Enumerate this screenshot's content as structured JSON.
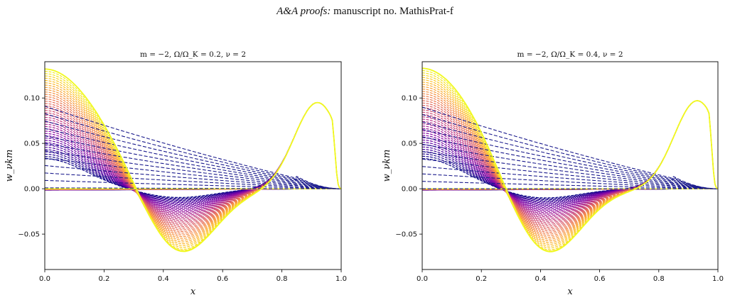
{
  "header": {
    "journal_italic": "A&A proofs:",
    "rest": " manuscript no. MathisPrat-f"
  },
  "chart_data": [
    {
      "type": "line",
      "title": "m = −2,  Ω/Ω_K = 0.2,  ν = 2",
      "xlabel": "x",
      "ylabel": "w_νkm",
      "xlim": [
        0.0,
        1.0
      ],
      "ylim": [
        -0.089,
        0.14
      ],
      "xticks": [
        "0.0",
        "0.2",
        "0.4",
        "0.6",
        "0.8",
        "1.0"
      ],
      "yticks": [
        "−0.05",
        "0.00",
        "0.05",
        "0.10"
      ],
      "colormap": "plasma (dark blue to yellow)",
      "grid": false,
      "profile_family": {
        "peak_at_x0": 0.132,
        "minimum": -0.078,
        "minimum_x": 0.45,
        "secondary_peak": 0.095,
        "secondary_peak_x": 0.92
      },
      "dashed_curves": {
        "start_values": [
          0.091,
          0.086
        ],
        "color": "#1a1a8c"
      }
    },
    {
      "type": "line",
      "title": "m = −2,  Ω/Ω_K = 0.4,  ν = 2",
      "xlabel": "x",
      "ylabel": "w_νkm",
      "xlim": [
        0.0,
        1.0
      ],
      "ylim": [
        -0.089,
        0.14
      ],
      "xticks": [
        "0.0",
        "0.2",
        "0.4",
        "0.6",
        "0.8",
        "1.0"
      ],
      "yticks": [
        "−0.05",
        "0.00",
        "0.05",
        "0.10"
      ],
      "colormap": "plasma (dark blue to yellow)",
      "grid": false,
      "profile_family": {
        "peak_at_x0": 0.133,
        "minimum": -0.083,
        "minimum_x": 0.41,
        "secondary_peak": 0.097,
        "secondary_peak_x": 0.93
      },
      "dashed_curves": {
        "start_values": [
          0.09,
          0.086
        ],
        "color": "#1a1a8c"
      }
    }
  ]
}
